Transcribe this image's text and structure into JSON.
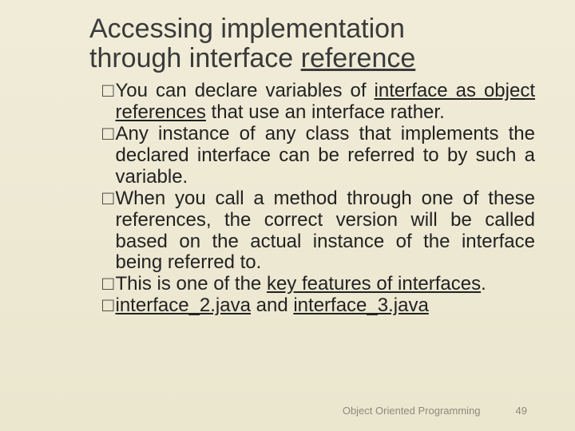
{
  "slide": {
    "title_line1": "Accessing implementation",
    "title_line2_a": "through interface ",
    "title_line2_b": "reference",
    "bullets": [
      {
        "a": "You can declare variables of ",
        "b": "interface as object references",
        "c": " that use an interface rather."
      },
      {
        "a": "Any instance of any class that implements the declared interface can be referred to by such a variable."
      },
      {
        "a": "When you call a method through one of these references, the correct version will be called based on the actual instance of the interface being referred to."
      },
      {
        "a": "This is one of the ",
        "b": "key features of interfaces",
        "c": "."
      },
      {
        "a": "",
        "b": "interface_2.java",
        "c": " and ",
        "d": "interface_3.java"
      }
    ],
    "footer_text": "Object Oriented Programming",
    "page_number": "49",
    "colors": {
      "bg_top": "#f0ecd8",
      "bg_bottom": "#ebe6ce",
      "title": "#3a3a3a",
      "body": "#222",
      "footer": "#8a8a7a"
    },
    "fonts": {
      "title_size_pt": 26,
      "body_size_pt": 18,
      "footer_size_pt": 10
    }
  }
}
